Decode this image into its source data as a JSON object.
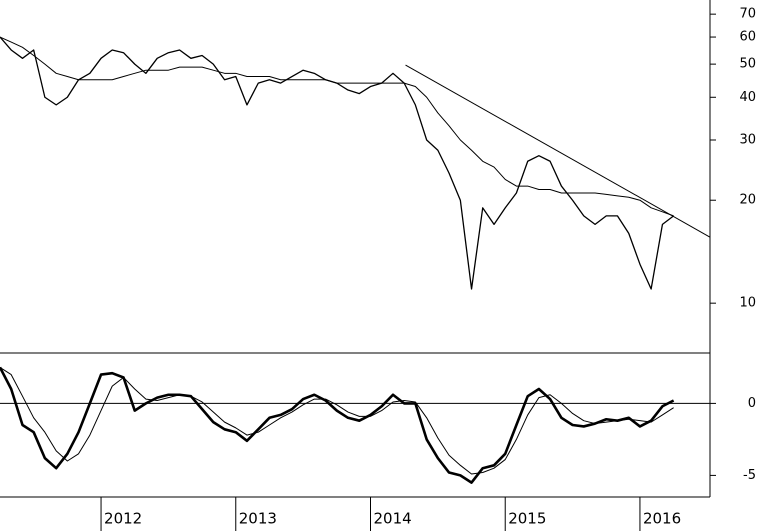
{
  "chart_data": [
    {
      "type": "line",
      "log_scale": true,
      "x": [
        2011.25,
        2011.333,
        2011.417,
        2011.5,
        2011.583,
        2011.667,
        2011.75,
        2011.833,
        2011.917,
        2012,
        2012.083,
        2012.167,
        2012.25,
        2012.333,
        2012.417,
        2012.5,
        2012.583,
        2012.667,
        2012.75,
        2012.833,
        2012.917,
        2013,
        2013.083,
        2013.167,
        2013.25,
        2013.333,
        2013.417,
        2013.5,
        2013.583,
        2013.667,
        2013.75,
        2013.833,
        2013.917,
        2014,
        2014.083,
        2014.167,
        2014.25,
        2014.333,
        2014.417,
        2014.5,
        2014.583,
        2014.667,
        2014.75,
        2014.833,
        2014.917,
        2015,
        2015.083,
        2015.167,
        2015.25,
        2015.333,
        2015.417,
        2015.5,
        2015.583,
        2015.667,
        2015.75,
        2015.833,
        2015.917,
        2016,
        2016.083,
        2016.167,
        2016.25
      ],
      "series": [
        {
          "color": "#000000",
          "width": 1.3,
          "values": [
            60,
            55,
            52,
            55,
            40,
            38,
            40,
            45,
            47,
            52,
            55,
            54,
            50,
            47,
            52,
            54,
            55,
            52,
            53,
            50,
            45,
            46,
            38,
            44,
            45,
            44,
            46,
            48,
            47,
            45,
            44,
            42,
            41,
            43,
            44,
            47,
            44,
            38,
            30,
            28,
            24,
            20,
            11,
            19,
            17,
            19,
            21,
            26,
            27,
            26,
            22,
            20,
            18,
            17,
            18,
            18,
            16,
            13,
            11,
            17,
            18
          ]
        },
        {
          "color": "#000000",
          "width": 1,
          "values": [
            60,
            58,
            56,
            53,
            50,
            47,
            46,
            45,
            45,
            45,
            45,
            46,
            47,
            48,
            48,
            48,
            49,
            49,
            49,
            48,
            47,
            47,
            46,
            46,
            46,
            45,
            45,
            45,
            45,
            45,
            44,
            44,
            44,
            44,
            44,
            44,
            44,
            43,
            40,
            36,
            33,
            30,
            28,
            26,
            25,
            23,
            22,
            22,
            21.5,
            21.5,
            21,
            21,
            21,
            21,
            20.8,
            20.6,
            20.4,
            20,
            19,
            18.5,
            18
          ]
        }
      ],
      "trendline": {
        "x": [
          2014.26,
          2016.52
        ],
        "values": [
          49.7,
          15.6
        ],
        "color": "#000000"
      },
      "xlim": [
        2011.25,
        2016.52
      ],
      "ylim": [
        7.15,
        77
      ],
      "yticks": [
        10,
        20,
        30,
        40,
        50,
        60,
        70
      ]
    },
    {
      "type": "line",
      "x": [
        2011.25,
        2011.333,
        2011.417,
        2011.5,
        2011.583,
        2011.667,
        2011.75,
        2011.833,
        2011.917,
        2012,
        2012.083,
        2012.167,
        2012.25,
        2012.333,
        2012.417,
        2012.5,
        2012.583,
        2012.667,
        2012.75,
        2012.833,
        2012.917,
        2013,
        2013.083,
        2013.167,
        2013.25,
        2013.333,
        2013.417,
        2013.5,
        2013.583,
        2013.667,
        2013.75,
        2013.833,
        2013.917,
        2014,
        2014.083,
        2014.167,
        2014.25,
        2014.333,
        2014.417,
        2014.5,
        2014.583,
        2014.667,
        2014.75,
        2014.833,
        2014.917,
        2015,
        2015.083,
        2015.167,
        2015.25,
        2015.333,
        2015.417,
        2015.5,
        2015.583,
        2015.667,
        2015.75,
        2015.833,
        2015.917,
        2016,
        2016.083,
        2016.167,
        2016.25
      ],
      "series": [
        {
          "color": "#000000",
          "width": 2.6,
          "values": [
            2.5,
            1.0,
            -1.5,
            -2.0,
            -3.8,
            -4.5,
            -3.5,
            -2.0,
            0.0,
            2.0,
            2.1,
            1.8,
            -0.5,
            0.0,
            0.4,
            0.6,
            0.6,
            0.5,
            -0.4,
            -1.3,
            -1.8,
            -2.0,
            -2.6,
            -1.8,
            -1.0,
            -0.8,
            -0.4,
            0.3,
            0.6,
            0.2,
            -0.5,
            -1.0,
            -1.2,
            -0.8,
            -0.2,
            0.6,
            0.0,
            0.0,
            -2.5,
            -3.8,
            -4.8,
            -5.0,
            -5.5,
            -4.5,
            -4.3,
            -3.5,
            -1.5,
            0.5,
            1.0,
            0.3,
            -1.0,
            -1.5,
            -1.6,
            -1.4,
            -1.1,
            -1.2,
            -1.0,
            -1.6,
            -1.2,
            -0.2,
            0.2
          ]
        },
        {
          "color": "#000000",
          "width": 1,
          "values": [
            2.5,
            2.0,
            0.5,
            -1.0,
            -2.0,
            -3.3,
            -4.0,
            -3.5,
            -2.2,
            -0.5,
            1.2,
            1.8,
            1.0,
            0.3,
            0.2,
            0.4,
            0.6,
            0.5,
            0.1,
            -0.6,
            -1.3,
            -1.7,
            -2.2,
            -2.0,
            -1.5,
            -1.0,
            -0.6,
            -0.1,
            0.3,
            0.3,
            -0.1,
            -0.6,
            -0.9,
            -0.9,
            -0.5,
            0.1,
            0.2,
            0.1,
            -1.0,
            -2.4,
            -3.6,
            -4.3,
            -4.9,
            -4.8,
            -4.5,
            -3.9,
            -2.5,
            -0.8,
            0.4,
            0.6,
            0.0,
            -0.7,
            -1.2,
            -1.4,
            -1.3,
            -1.2,
            -1.1,
            -1.2,
            -1.3,
            -0.8,
            -0.3
          ]
        }
      ],
      "reference_line": 0,
      "xlim": [
        2011.25,
        2016.52
      ],
      "xticks": [
        2012,
        2013,
        2014,
        2015,
        2016
      ],
      "ylim": [
        -6.5,
        3.5
      ],
      "yticks": [
        -5,
        0
      ]
    }
  ]
}
